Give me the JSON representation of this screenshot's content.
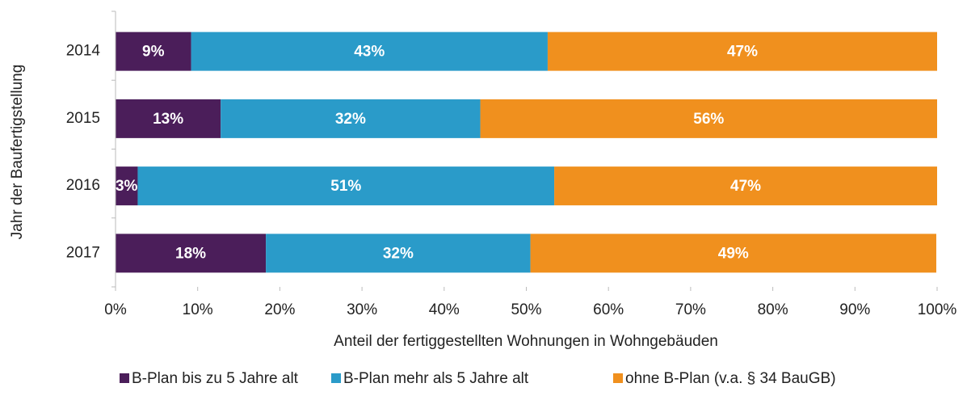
{
  "chart_data": {
    "type": "stacked_barh",
    "y_label": "Jahr der Baufertigstellung",
    "x_label": "Anteil der fertiggestellten Wohnungen in Wohngebäuden",
    "categories": [
      "2014",
      "2015",
      "2016",
      "2017"
    ],
    "series": [
      {
        "name": "B-Plan bis zu 5 Jahre alt",
        "color": "#4b1e5a",
        "values": [
          9.2,
          12.8,
          2.7,
          18.3
        ],
        "value_labels": [
          "9%",
          "13%",
          "3%",
          "18%"
        ]
      },
      {
        "name": "B-Plan mehr als 5 Jahre alt",
        "color": "#2a9bc9",
        "values": [
          43.4,
          31.6,
          50.7,
          32.2
        ],
        "value_labels": [
          "43%",
          "32%",
          "51%",
          "32%"
        ]
      },
      {
        "name": "ohne B-Plan (v.a. § 34 BauGB)",
        "color": "#f0901e",
        "values": [
          47.4,
          55.6,
          46.6,
          49.4
        ],
        "value_labels": [
          "47%",
          "56%",
          "47%",
          "49%"
        ]
      }
    ],
    "xlim": [
      0,
      100
    ],
    "xticks": [
      {
        "value": 0,
        "label": "0%"
      },
      {
        "value": 10,
        "label": "10%"
      },
      {
        "value": 20,
        "label": "20%"
      },
      {
        "value": 30,
        "label": "30%"
      },
      {
        "value": 40,
        "label": "40%"
      },
      {
        "value": 50,
        "label": "50%"
      },
      {
        "value": 60,
        "label": "60%"
      },
      {
        "value": 70,
        "label": "70%"
      },
      {
        "value": 80,
        "label": "80%"
      },
      {
        "value": 90,
        "label": "90%"
      },
      {
        "value": 100,
        "label": "100%"
      }
    ],
    "legend": "bottom"
  }
}
